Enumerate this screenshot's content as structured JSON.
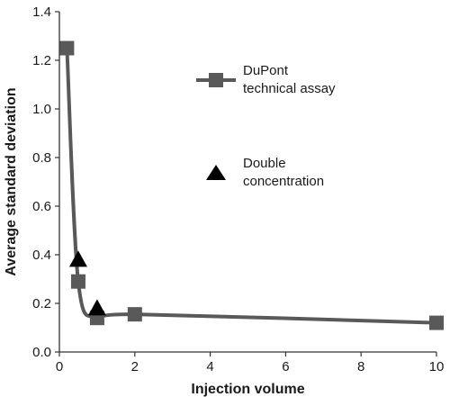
{
  "chart_data": {
    "type": "line",
    "xlabel": "Injection volume",
    "ylabel": "Average standard deviation",
    "xlim": [
      0,
      10
    ],
    "ylim": [
      0.0,
      1.4
    ],
    "x_ticks": [
      "0",
      "2",
      "4",
      "6",
      "8",
      "10"
    ],
    "y_ticks": [
      "0.0",
      "0.2",
      "0.4",
      "0.6",
      "0.8",
      "1.0",
      "1.2",
      "1.4"
    ],
    "grid": false,
    "legend_position": "top-right",
    "series": [
      {
        "name": "DuPont technical assay",
        "legend_lines": [
          "DuPont",
          "technical assay"
        ],
        "marker": "square",
        "color": "#595959",
        "points": [
          {
            "x": 0.2,
            "y": 1.25
          },
          {
            "x": 0.5,
            "y": 0.29
          },
          {
            "x": 1.0,
            "y": 0.14
          },
          {
            "x": 2.0,
            "y": 0.155
          },
          {
            "x": 10.0,
            "y": 0.12
          }
        ]
      },
      {
        "name": "Double concentration",
        "legend_lines": [
          "Double",
          "concentration"
        ],
        "marker": "triangle",
        "color": "#000000",
        "points": [
          {
            "x": 0.5,
            "y": 0.38
          },
          {
            "x": 1.0,
            "y": 0.18
          }
        ]
      }
    ]
  }
}
